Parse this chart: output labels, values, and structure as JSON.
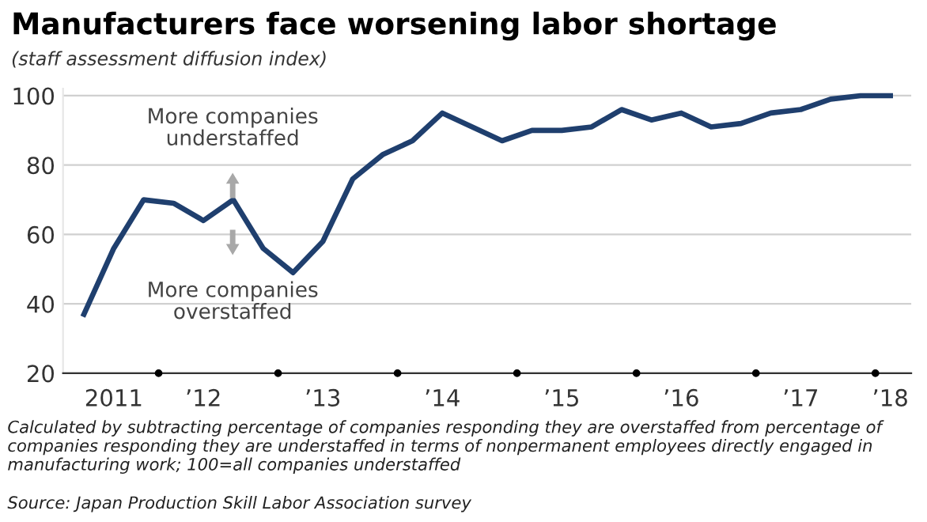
{
  "chart_data": {
    "type": "line",
    "title": "Manufacturers face worsening labor shortage",
    "subtitle": "(staff assessment diffusion index)",
    "categories": [
      null,
      "2011",
      null,
      null,
      "’12",
      null,
      null,
      null,
      "’13",
      null,
      null,
      null,
      "’14",
      null,
      null,
      null,
      "’15",
      null,
      null,
      null,
      "’16",
      null,
      null,
      null,
      "’17",
      null,
      null,
      "’18"
    ],
    "series": [
      {
        "color": "#1f3f6e",
        "values": [
          37,
          56,
          70,
          69,
          64,
          70,
          56,
          49,
          58,
          76,
          83,
          87,
          95,
          91,
          87,
          90,
          90,
          91,
          96,
          93,
          95,
          91,
          92,
          95,
          96,
          99,
          100,
          100
        ]
      }
    ],
    "ylim": [
      20,
      102
    ],
    "yticks": [
      20,
      40,
      60,
      80,
      100
    ],
    "grid": "y",
    "legend": false,
    "marker": "none",
    "line_style": "solid",
    "annotations": [
      "More companies\nunderstaffed",
      "More companies\noverstaffed",
      "Calculated by subtracting percentage of companies responding they are overstaffed from percentage of companies responding they are understaffed in terms of nonpermanent employees directly engaged in manufacturing work; 100=all companies understaffed",
      "Source: Japan Production Skill Labor Association survey"
    ]
  }
}
